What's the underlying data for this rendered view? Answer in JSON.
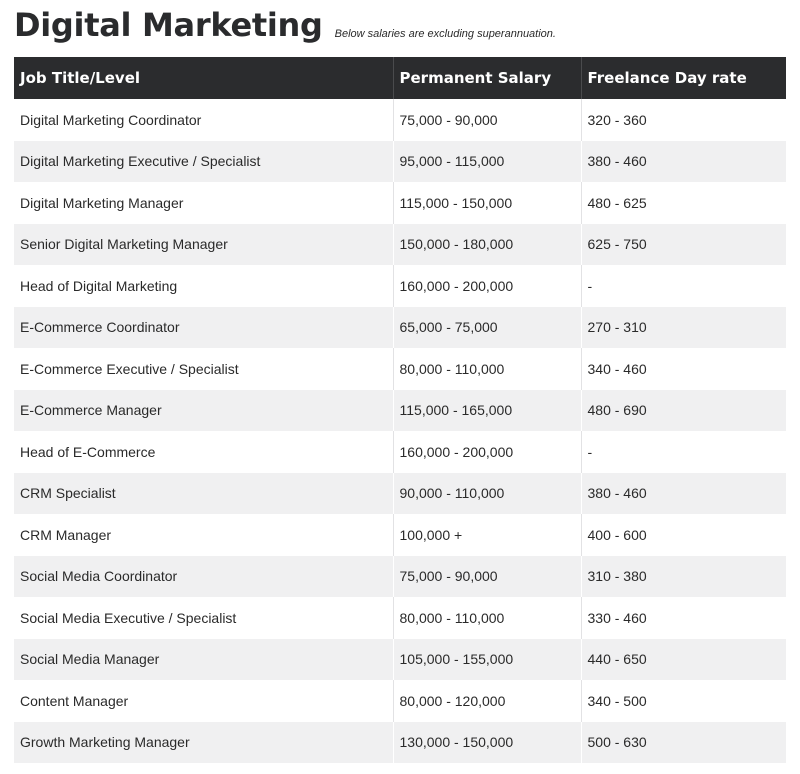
{
  "header": {
    "title": "Digital Marketing",
    "note": "Below salaries are excluding superannuation."
  },
  "table": {
    "columns": [
      "Job Title/Level",
      "Permanent Salary",
      "Freelance Day rate"
    ],
    "rows": [
      [
        "Digital Marketing Coordinator",
        "75,000 - 90,000",
        "320 - 360"
      ],
      [
        "Digital Marketing Executive / Specialist",
        "95,000 - 115,000",
        "380 - 460"
      ],
      [
        "Digital Marketing Manager",
        "115,000 - 150,000",
        "480 - 625"
      ],
      [
        "Senior Digital Marketing Manager",
        "150,000 - 180,000",
        "625 - 750"
      ],
      [
        "Head of Digital Marketing",
        "160,000 - 200,000",
        "-"
      ],
      [
        "E-Commerce Coordinator",
        "65,000 - 75,000",
        "270 - 310"
      ],
      [
        "E-Commerce Executive / Specialist",
        "80,000 - 110,000",
        "340 - 460"
      ],
      [
        "E-Commerce Manager",
        "115,000 - 165,000",
        "480 - 690"
      ],
      [
        "Head of E-Commerce",
        "160,000 - 200,000",
        "-"
      ],
      [
        "CRM Specialist",
        "90,000 - 110,000",
        "380 - 460"
      ],
      [
        "CRM Manager",
        "100,000 +",
        "400 - 600"
      ],
      [
        "Social Media Coordinator",
        "75,000 - 90,000",
        "310 - 380"
      ],
      [
        "Social Media Executive / Specialist",
        "80,000 - 110,000",
        "330 - 460"
      ],
      [
        "Social Media Manager",
        "105,000 - 155,000",
        "440 - 650"
      ],
      [
        "Content Manager",
        "80,000 - 120,000",
        "340 - 500"
      ],
      [
        "Growth Marketing Manager",
        "130,000 - 150,000",
        "500 - 630"
      ]
    ]
  },
  "colors": {
    "header_bg": "#2b2c2e",
    "stripe_bg": "#f0f0f1",
    "text": "#2a2a2a"
  }
}
